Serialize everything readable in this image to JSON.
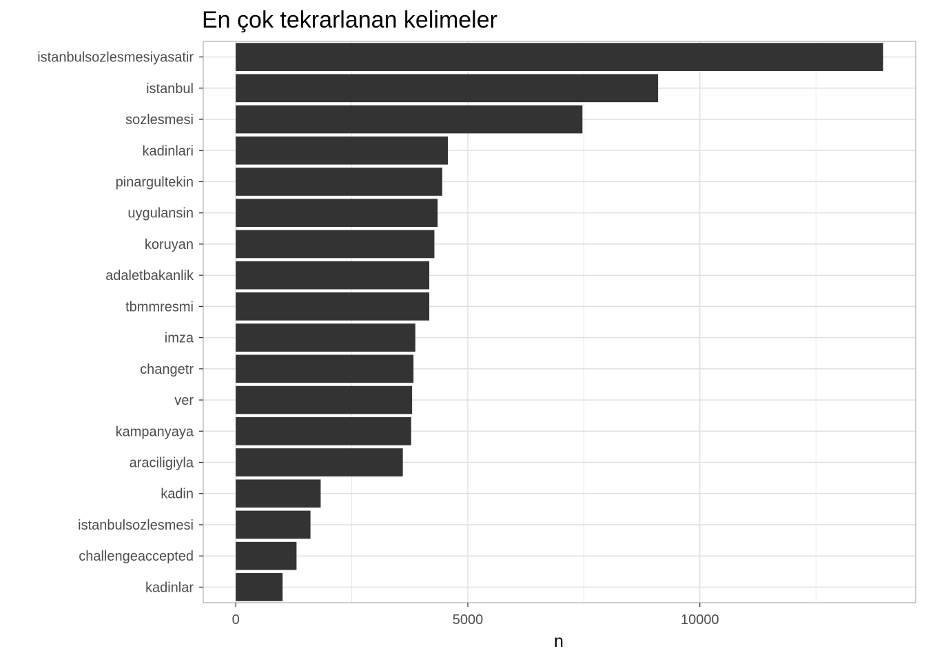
{
  "chart_data": {
    "type": "bar",
    "orientation": "horizontal",
    "title": "En çok tekrarlanan kelimeler",
    "xlabel": "n",
    "ylabel": "",
    "categories": [
      "istanbulsozlesmesiyasatir",
      "istanbul",
      "sozlesmesi",
      "kadinlari",
      "pinargultekin",
      "uygulansin",
      "koruyan",
      "adaletbakanlik",
      "tbmmresmi",
      "imza",
      "changetr",
      "ver",
      "kampanyaya",
      "araciligiyla",
      "kadin",
      "istanbulsozlesmesi",
      "challengeaccepted",
      "kadinlar"
    ],
    "values": [
      13950,
      9100,
      7470,
      4570,
      4450,
      4350,
      4280,
      4170,
      4170,
      3870,
      3830,
      3800,
      3780,
      3600,
      1830,
      1610,
      1310,
      1010
    ],
    "x_ticks": [
      {
        "value": 0,
        "label": "0"
      },
      {
        "value": 5000,
        "label": "5000"
      },
      {
        "value": 10000,
        "label": "10000"
      }
    ],
    "xlim": [
      -700,
      14650
    ],
    "grid": true,
    "legend": "none",
    "bar_color": "#333333",
    "grid_color": "#dedede",
    "panel_border_color": "#b3b3b3"
  }
}
